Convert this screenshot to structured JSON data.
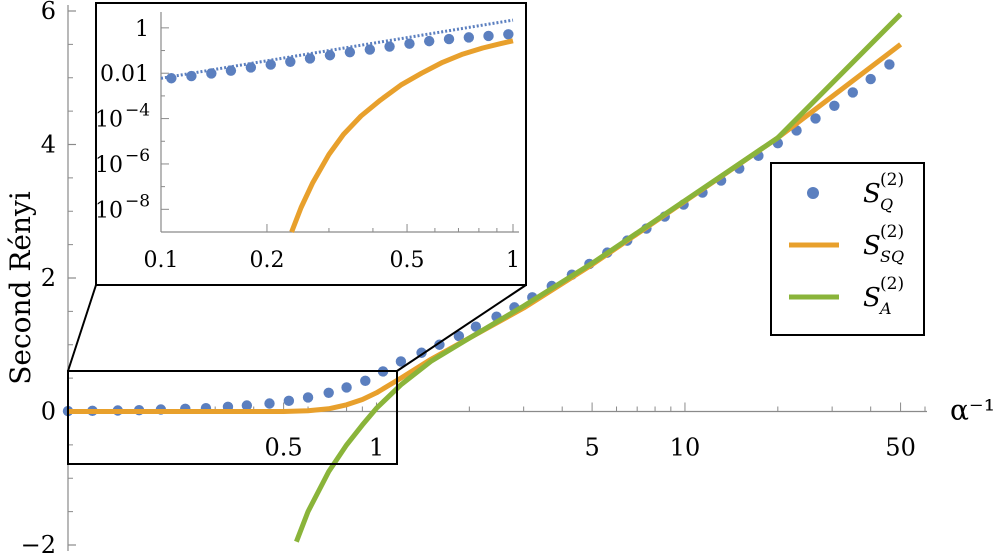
{
  "chart_data": [
    {
      "type": "scatter+line",
      "xscale": "log",
      "xlabel": "α⁻¹",
      "ylabel": "Second Rényi",
      "xlim": [
        0.1,
        60
      ],
      "ylim": [
        -2,
        6
      ],
      "x_ticks": [
        {
          "value": 0.5,
          "label": "0.5"
        },
        {
          "value": 1,
          "label": "1"
        },
        {
          "value": 5,
          "label": "5"
        },
        {
          "value": 10,
          "label": "10"
        },
        {
          "value": 50,
          "label": "50"
        }
      ],
      "y_ticks": [
        {
          "value": -2,
          "label": "−2"
        },
        {
          "value": 0,
          "label": "0"
        },
        {
          "value": 2,
          "label": "2"
        },
        {
          "value": 4,
          "label": "4"
        },
        {
          "value": 6,
          "label": "6"
        }
      ],
      "legend_position": "right",
      "series": [
        {
          "name": "S_Q^(2)",
          "legend": {
            "base": "S",
            "sub": "Q",
            "sup": "(2)"
          },
          "kind": "points",
          "color": "#5b7fbf",
          "x": [
            0.1,
            0.12,
            0.145,
            0.17,
            0.2,
            0.24,
            0.28,
            0.33,
            0.38,
            0.45,
            0.52,
            0.6,
            0.7,
            0.8,
            0.92,
            1.05,
            1.2,
            1.4,
            1.6,
            1.85,
            2.1,
            2.45,
            2.8,
            3.2,
            3.7,
            4.3,
            4.9,
            5.6,
            6.5,
            7.5,
            8.6,
            9.9,
            11.4,
            13.1,
            15,
            17.3,
            20,
            23,
            26.5,
            30.5,
            35,
            40,
            46
          ],
          "y": [
            0.006,
            0.01,
            0.015,
            0.02,
            0.03,
            0.04,
            0.05,
            0.07,
            0.09,
            0.12,
            0.16,
            0.21,
            0.28,
            0.36,
            0.46,
            0.6,
            0.75,
            0.88,
            1.0,
            1.13,
            1.27,
            1.42,
            1.56,
            1.71,
            1.88,
            2.05,
            2.21,
            2.38,
            2.56,
            2.74,
            2.92,
            3.1,
            3.28,
            3.46,
            3.64,
            3.83,
            4.02,
            4.21,
            4.39,
            4.58,
            4.78,
            4.98,
            5.2
          ]
        },
        {
          "name": "S_SQ^(2)",
          "legend": {
            "base": "S",
            "sub": "SQ",
            "sup": "(2)"
          },
          "kind": "line",
          "color": "#e8a02c",
          "x": [
            0.1,
            0.2,
            0.3,
            0.4,
            0.5,
            0.6,
            0.7,
            0.8,
            0.9,
            1.0,
            1.2,
            1.5,
            2,
            3,
            5,
            10,
            20,
            50
          ],
          "y": [
            0.0,
            0.0,
            0.0,
            0.0,
            0.0,
            0.01,
            0.04,
            0.1,
            0.18,
            0.28,
            0.5,
            0.78,
            1.1,
            1.55,
            2.2,
            3.15,
            4.1,
            5.5
          ]
        },
        {
          "name": "S_A^(2)",
          "legend": {
            "base": "S",
            "sub": "A",
            "sup": "(2)"
          },
          "kind": "line",
          "color": "#8ab43a",
          "x": [
            0.55,
            0.6,
            0.7,
            0.8,
            0.9,
            1.0,
            1.2,
            1.5,
            2,
            3,
            5,
            10,
            20,
            50
          ],
          "y": [
            -1.95,
            -1.5,
            -0.9,
            -0.5,
            -0.2,
            0.05,
            0.4,
            0.75,
            1.1,
            1.58,
            2.22,
            3.16,
            4.1,
            5.95
          ]
        }
      ]
    },
    {
      "type": "scatter+line",
      "role": "inset",
      "xscale": "log",
      "yscale": "log",
      "xlim": [
        0.1,
        1
      ],
      "ylim": [
        1e-09,
        5
      ],
      "x_ticks": [
        {
          "value": 0.1,
          "label": "0.1"
        },
        {
          "value": 0.2,
          "label": "0.2"
        },
        {
          "value": 0.5,
          "label": "0.5"
        },
        {
          "value": 1,
          "label": "1"
        }
      ],
      "y_ticks": [
        {
          "value": 1,
          "label": "1"
        },
        {
          "value": 0.01,
          "label": "0.01"
        },
        {
          "value": 0.0001,
          "label": "10",
          "exp": "−4"
        },
        {
          "value": 1e-06,
          "label": "10",
          "exp": "−6"
        },
        {
          "value": 1e-08,
          "label": "10",
          "exp": "−8"
        }
      ],
      "series": [
        {
          "name": "S_Q^(2)",
          "kind": "points",
          "color": "#5b7fbf",
          "x": [
            0.107,
            0.122,
            0.139,
            0.158,
            0.18,
            0.205,
            0.233,
            0.265,
            0.302,
            0.344,
            0.392,
            0.446,
            0.508,
            0.578,
            0.658,
            0.749,
            0.852,
            0.97
          ],
          "y": [
            0.006,
            0.0075,
            0.0098,
            0.013,
            0.018,
            0.024,
            0.032,
            0.045,
            0.062,
            0.085,
            0.11,
            0.15,
            0.2,
            0.26,
            0.32,
            0.38,
            0.44,
            0.52
          ]
        },
        {
          "name": "asymptote",
          "kind": "dotted-line",
          "color": "#5b7fbf",
          "x": [
            0.1,
            1.0
          ],
          "y": [
            0.006,
            2.2
          ]
        },
        {
          "name": "S_SQ^(2)",
          "kind": "line",
          "color": "#e8a02c",
          "x": [
            0.235,
            0.25,
            0.27,
            0.3,
            0.33,
            0.37,
            0.42,
            0.48,
            0.55,
            0.63,
            0.72,
            0.82,
            0.92,
            1.0
          ],
          "y": [
            1e-09,
            1.2e-08,
            1.5e-07,
            2.6e-06,
            2e-05,
            0.00013,
            0.00065,
            0.003,
            0.01,
            0.03,
            0.07,
            0.13,
            0.2,
            0.27
          ]
        }
      ]
    }
  ]
}
